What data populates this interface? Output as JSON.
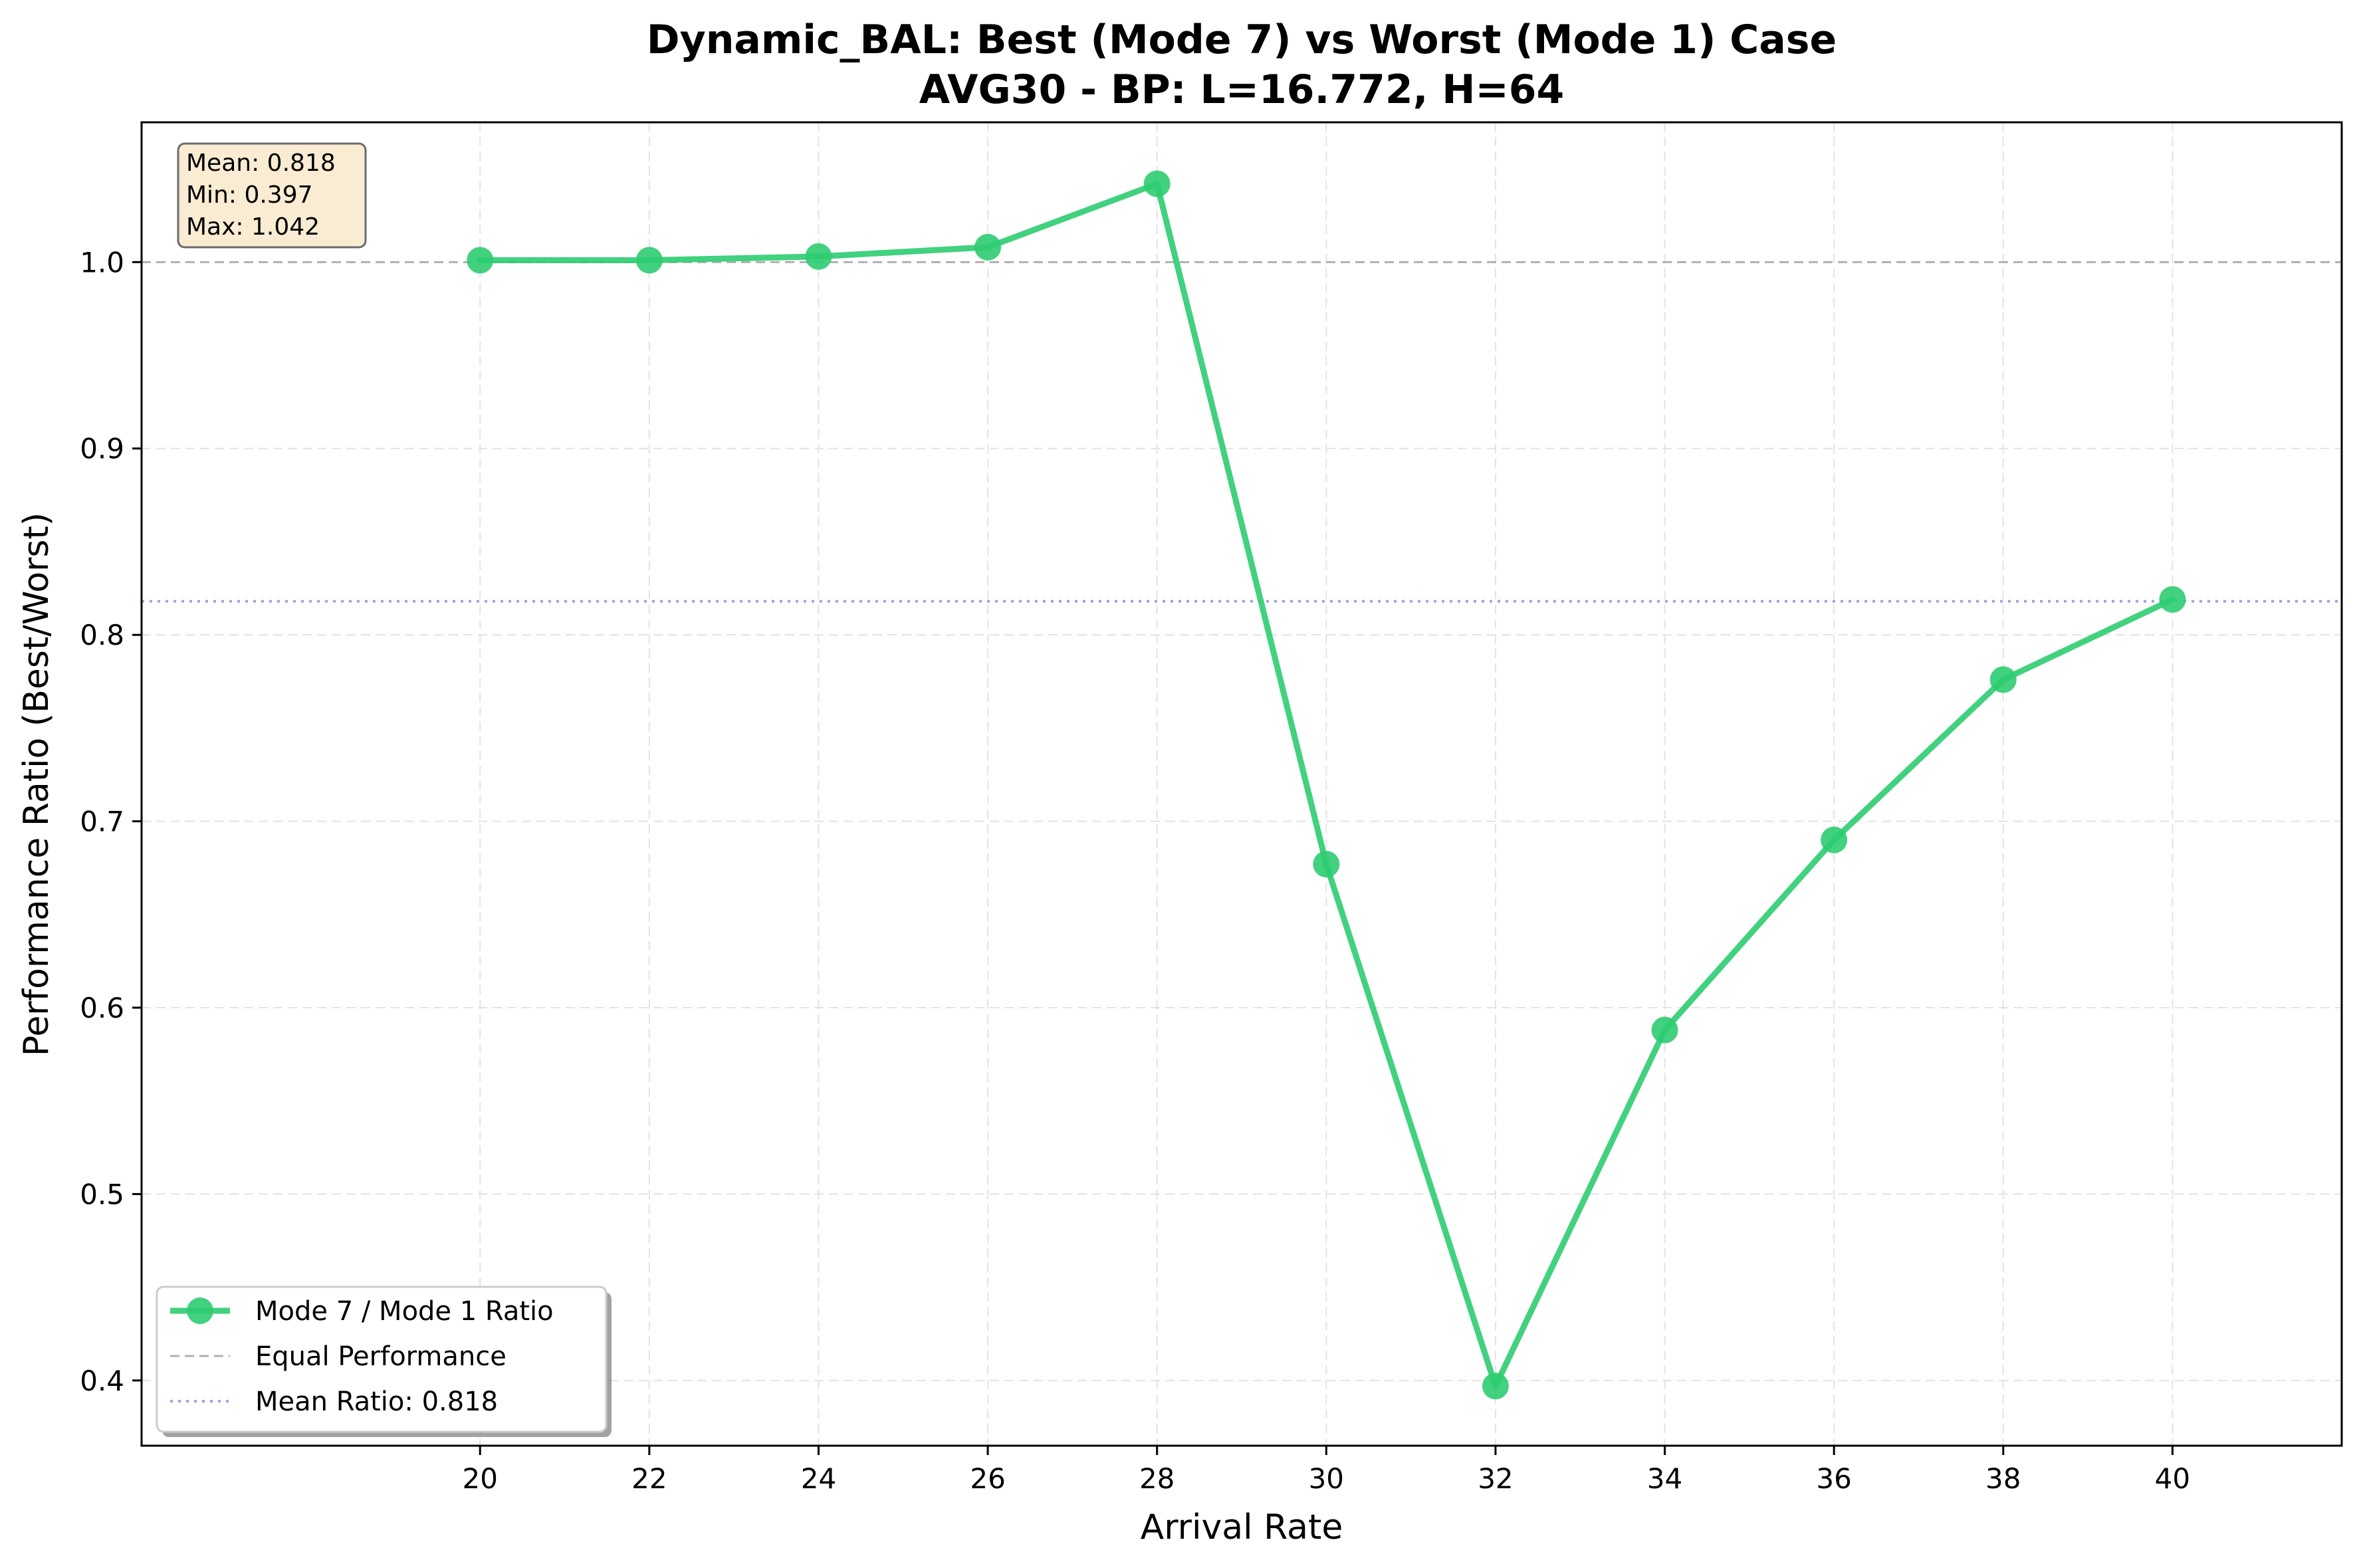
{
  "chart_data": {
    "type": "line",
    "title": "Dynamic_BAL: Best (Mode 7) vs Worst (Mode 1) Case",
    "subtitle": "AVG30 - BP: L=16.772, H=64",
    "xlabel": "Arrival Rate",
    "ylabel": "Performance Ratio (Best/Worst)",
    "xlim": [
      16,
      42
    ],
    "ylim": [
      0.365,
      1.075
    ],
    "xticks": [
      20,
      22,
      24,
      26,
      28,
      30,
      32,
      34,
      36,
      38,
      40
    ],
    "xtick_labels": [
      "20",
      "22",
      "24",
      "26",
      "28",
      "30",
      "32",
      "34",
      "36",
      "38",
      "40"
    ],
    "yticks": [
      0.4,
      0.5,
      0.6,
      0.7,
      0.8,
      0.9,
      1.0
    ],
    "ytick_labels": [
      "0.4",
      "0.5",
      "0.6",
      "0.7",
      "0.8",
      "0.9",
      "1.0"
    ],
    "grid": true,
    "series": [
      {
        "name": "Mode 7 / Mode 1 Ratio",
        "x": [
          20,
          22,
          24,
          26,
          28,
          30,
          32,
          34,
          36,
          38,
          40
        ],
        "y": [
          1.001,
          1.001,
          1.003,
          1.008,
          1.042,
          0.677,
          0.397,
          0.588,
          0.69,
          0.776,
          0.819
        ],
        "color": "#2ecc71"
      }
    ],
    "reference_lines": [
      {
        "name": "Equal Performance",
        "y": 1.0,
        "color": "#b0b0b0",
        "style": "dashed"
      },
      {
        "name": "Mean Ratio: 0.818",
        "y": 0.818,
        "color": "#a0a0e6",
        "style": "dotted"
      }
    ],
    "legend": {
      "placement": "lower-left",
      "entries": [
        "Mode 7 / Mode 1 Ratio",
        "Equal Performance",
        "Mean Ratio: 0.818"
      ]
    },
    "stats_box": {
      "placement": "top-left",
      "lines": [
        "Mean: 0.818",
        "Min: 0.397",
        "Max: 1.042"
      ],
      "background": "#f9ecd3"
    }
  }
}
